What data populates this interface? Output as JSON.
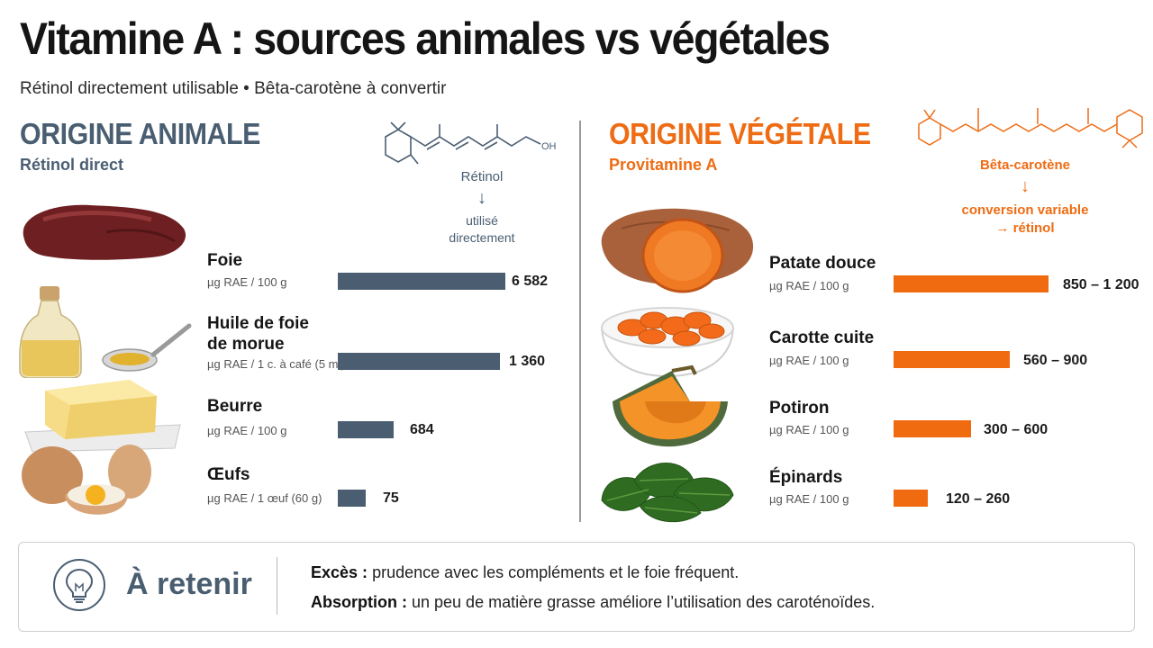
{
  "title": "Vitamine A : sources animales vs végétales",
  "subtitle": "Rétinol directement utilisable • Bêta-carotène à convertir",
  "animal": {
    "title": "ORIGINE ANIMALE",
    "subtitle": "Rétinol direct",
    "molecule_oh": "OH",
    "molecule_name": "Rétinol",
    "arrow": "↓",
    "molecule_note": [
      "utilisé",
      "directement"
    ]
  },
  "vegetal": {
    "title": "ORIGINE VÉGÉTALE",
    "subtitle": "Provitamine A",
    "molecule_name": "Bêta-carotène",
    "arrow": "↓",
    "molecule_note": [
      "conversion variable",
      "→ rétinol"
    ]
  },
  "chart_data": [
    {
      "type": "bar",
      "orientation": "horizontal",
      "categories": [
        "Foie",
        "Huile de foie de morue",
        "Beurre",
        "Œufs"
      ],
      "name_lines": [
        [
          "Foie"
        ],
        [
          "Huile de foie",
          "de morue"
        ],
        [
          "Beurre"
        ],
        [
          "Œufs"
        ]
      ],
      "units": [
        "µg RAE / 100 g",
        "µg RAE / 1 c. à café (5 ml)",
        "µg RAE / 100 g",
        "µg RAE / 1 œuf (60 g)"
      ],
      "values": [
        6582,
        1360,
        684,
        75
      ],
      "value_labels": [
        "6 582",
        "1 360",
        "684",
        "75"
      ],
      "color": "#4b5e71"
    },
    {
      "type": "bar",
      "orientation": "horizontal",
      "categories": [
        "Patate douce",
        "Carotte cuite",
        "Potiron",
        "Épinards"
      ],
      "name_lines": [
        [
          "Patate douce"
        ],
        [
          "Carotte cuite"
        ],
        [
          "Potiron"
        ],
        [
          "Épinards"
        ]
      ],
      "units": [
        "µg RAE / 100 g",
        "µg RAE / 100 g",
        "µg RAE / 100 g",
        "µg RAE / 100 g"
      ],
      "ranges": [
        [
          850,
          1200
        ],
        [
          560,
          900
        ],
        [
          300,
          600
        ],
        [
          120,
          260
        ]
      ],
      "value_labels": [
        "850 – 1 200",
        "560 – 900",
        "300 – 600",
        "120 – 260"
      ],
      "color": "#f06b10"
    }
  ],
  "footer": {
    "title": "À retenir",
    "icon": "lightbulb-icon",
    "notes": [
      {
        "label": "Excès :",
        "text": "prudence avec les compléments et le foie fréquent."
      },
      {
        "label": "Absorption :",
        "text": "un peu de matière grasse améliore l’utilisation des caroténoïdes."
      }
    ]
  },
  "images": [
    "liver-image",
    "cod-liver-oil-image",
    "butter-image",
    "eggs-image",
    "sweet-potato-image",
    "carrots-bowl-image",
    "pumpkin-image",
    "spinach-image"
  ],
  "colors": {
    "animal": "#4b5e71",
    "vegetal": "#f06b10",
    "text": "#1c1c1c"
  }
}
